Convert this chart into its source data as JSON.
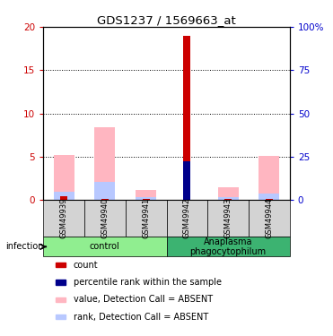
{
  "title": "GDS1237 / 1569663_at",
  "samples": [
    "GSM49939",
    "GSM49940",
    "GSM49941",
    "GSM49942",
    "GSM49943",
    "GSM49944"
  ],
  "count_values": [
    0.4,
    0.15,
    0.1,
    19.0,
    0.1,
    0.15
  ],
  "percentile_rank_scaled": [
    null,
    null,
    null,
    4.5,
    null,
    null
  ],
  "value_absent": [
    5.2,
    8.4,
    1.2,
    null,
    1.5,
    5.1
  ],
  "rank_absent_scaled": [
    1.0,
    2.1,
    0.3,
    null,
    0.3,
    0.7
  ],
  "groups": [
    {
      "label": "control",
      "start": 0,
      "end": 3,
      "color": "#90EE90"
    },
    {
      "label": "Anaplasma\nphagocytophilum",
      "start": 3,
      "end": 6,
      "color": "#3CB371"
    }
  ],
  "ylim_left": [
    0,
    20
  ],
  "yticks_left": [
    0,
    5,
    10,
    15,
    20
  ],
  "yticks_right": [
    0,
    25,
    50,
    75,
    100
  ],
  "ytick_labels_right": [
    "0",
    "25",
    "50",
    "75",
    "100%"
  ],
  "color_count": "#CC0000",
  "color_percentile": "#00008B",
  "color_value_absent": "#FFB6C1",
  "color_rank_absent": "#B8C8FF",
  "left_axis_color": "#CC0000",
  "right_axis_color": "#0000CC",
  "pink_bar_width": 0.5,
  "red_bar_width": 0.18,
  "infection_label": "infection",
  "legend_items": [
    {
      "label": "count",
      "color": "#CC0000"
    },
    {
      "label": "percentile rank within the sample",
      "color": "#00008B"
    },
    {
      "label": "value, Detection Call = ABSENT",
      "color": "#FFB6C1"
    },
    {
      "label": "rank, Detection Call = ABSENT",
      "color": "#B8C8FF"
    }
  ]
}
